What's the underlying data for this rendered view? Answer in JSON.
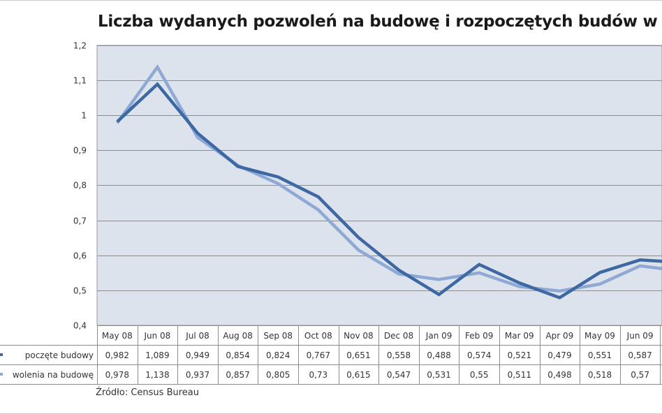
{
  "title": "Liczba wydanych pozwoleń na budowę i rozpoczętych budów w",
  "source": "Źródło:  Census Bureau",
  "colors": {
    "plot_background": "#dde3ec",
    "gridline": "#8c8c8c",
    "series_dark": "#3e68a4",
    "series_light": "#8ea9d3"
  },
  "chart_data": {
    "type": "line",
    "title": "Liczba wydanych pozwoleń na budowę i rozpoczętych budów w",
    "categories": [
      "May 08",
      "Jun 08",
      "Jul 08",
      "Aug 08",
      "Sep 08",
      "Oct 08",
      "Nov 08",
      "Dec 08",
      "Jan 09",
      "Feb 09",
      "Mar 09",
      "Apr 09",
      "May 09",
      "Jun 09"
    ],
    "series": [
      {
        "name": "Rozpoczęte budowy",
        "name_visible": "poczęte budowy",
        "color": "#3e68a4",
        "values": [
          0.982,
          1.089,
          0.949,
          0.854,
          0.824,
          0.767,
          0.651,
          0.558,
          0.488,
          0.574,
          0.521,
          0.479,
          0.551,
          0.587
        ],
        "labels": [
          "0,982",
          "1,089",
          "0,949",
          "0,854",
          "0,824",
          "0,767",
          "0,651",
          "0,558",
          "0,488",
          "0,574",
          "0,521",
          "0,479",
          "0,551",
          "0,587"
        ]
      },
      {
        "name": "Pozwolenia na budowę",
        "name_visible": "wolenia na budowę",
        "color": "#8ea9d3",
        "values": [
          0.978,
          1.138,
          0.937,
          0.857,
          0.805,
          0.73,
          0.615,
          0.547,
          0.531,
          0.55,
          0.511,
          0.498,
          0.518,
          0.57
        ],
        "labels": [
          "0,978",
          "1,138",
          "0,937",
          "0,857",
          "0,805",
          "0,73",
          "0,615",
          "0,547",
          "0,531",
          "0,55",
          "0,511",
          "0,498",
          "0,518",
          "0,57"
        ]
      }
    ],
    "ylim": [
      0.4,
      1.2
    ],
    "yticks": [
      0.4,
      0.5,
      0.6,
      0.7,
      0.8,
      0.9,
      1.0,
      1.1,
      1.2
    ],
    "ytick_labels": [
      "0,4",
      "0,5",
      "0,6",
      "0,7",
      "0,8",
      "0,9",
      "1",
      "1,1",
      "1,2"
    ],
    "grid": true,
    "legend": "data-table"
  }
}
